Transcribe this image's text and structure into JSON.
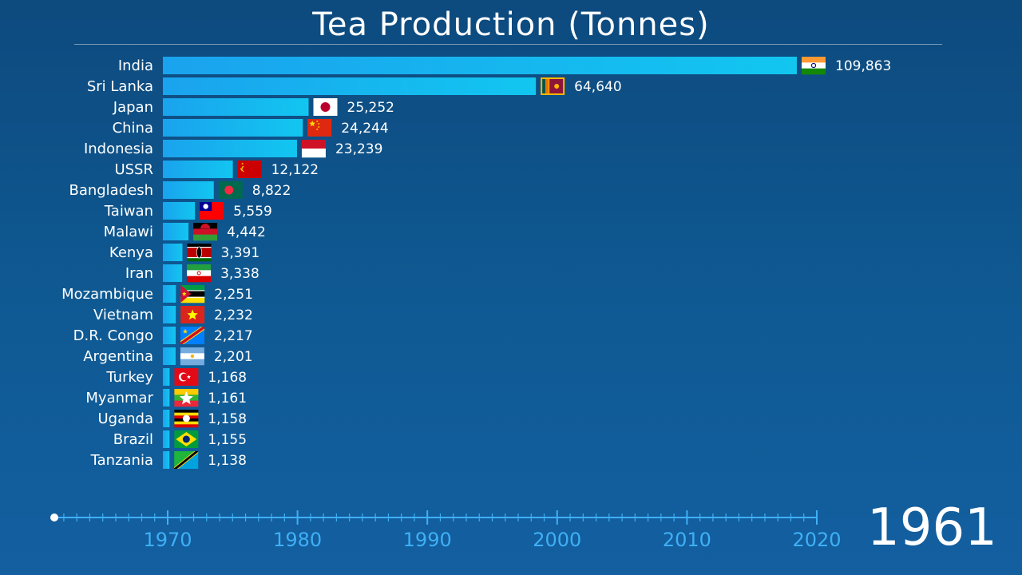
{
  "title": "Tea Production (Tonnes)",
  "current_year": "1961",
  "colors": {
    "bar": "#1aa3ee",
    "bar_top": "#12c6f0",
    "tick": "#3fb0f5",
    "bg": "#0f5a94"
  },
  "chart_data": {
    "type": "bar",
    "orientation": "horizontal",
    "title": "Tea Production (Tonnes)",
    "xlim": [
      0,
      109863
    ],
    "categories": [
      "India",
      "Sri Lanka",
      "Japan",
      "China",
      "Indonesia",
      "USSR",
      "Bangladesh",
      "Taiwan",
      "Malawi",
      "Kenya",
      "Iran",
      "Mozambique",
      "Vietnam",
      "D.R. Congo",
      "Argentina",
      "Turkey",
      "Myanmar",
      "Uganda",
      "Brazil",
      "Tanzania"
    ],
    "values": [
      109863,
      64640,
      25252,
      24244,
      23239,
      12122,
      8822,
      5559,
      4442,
      3391,
      3338,
      2251,
      2232,
      2217,
      2201,
      1168,
      1161,
      1158,
      1155,
      1138
    ],
    "value_labels": [
      "109,863",
      "64,640",
      "25,252",
      "24,244",
      "23,239",
      "12,122",
      "8,822",
      "5,559",
      "4,442",
      "3,391",
      "3,338",
      "2,251",
      "2,232",
      "2,217",
      "2,201",
      "1,168",
      "1,161",
      "1,158",
      "1,155",
      "1,138"
    ],
    "flag_icons": [
      "india-flag-icon",
      "sri-lanka-flag-icon",
      "japan-flag-icon",
      "china-flag-icon",
      "indonesia-flag-icon",
      "ussr-flag-icon",
      "bangladesh-flag-icon",
      "taiwan-flag-icon",
      "malawi-flag-icon",
      "kenya-flag-icon",
      "iran-flag-icon",
      "mozambique-flag-icon",
      "vietnam-flag-icon",
      "dr-congo-flag-icon",
      "argentina-flag-icon",
      "turkey-flag-icon",
      "myanmar-flag-icon",
      "uganda-flag-icon",
      "brazil-flag-icon",
      "tanzania-flag-icon"
    ]
  },
  "timeline": {
    "start_year": 1961,
    "end_year": 2020,
    "current_year": 1961,
    "tick_labels": [
      "1970",
      "1980",
      "1990",
      "2000",
      "2010",
      "2020"
    ]
  }
}
